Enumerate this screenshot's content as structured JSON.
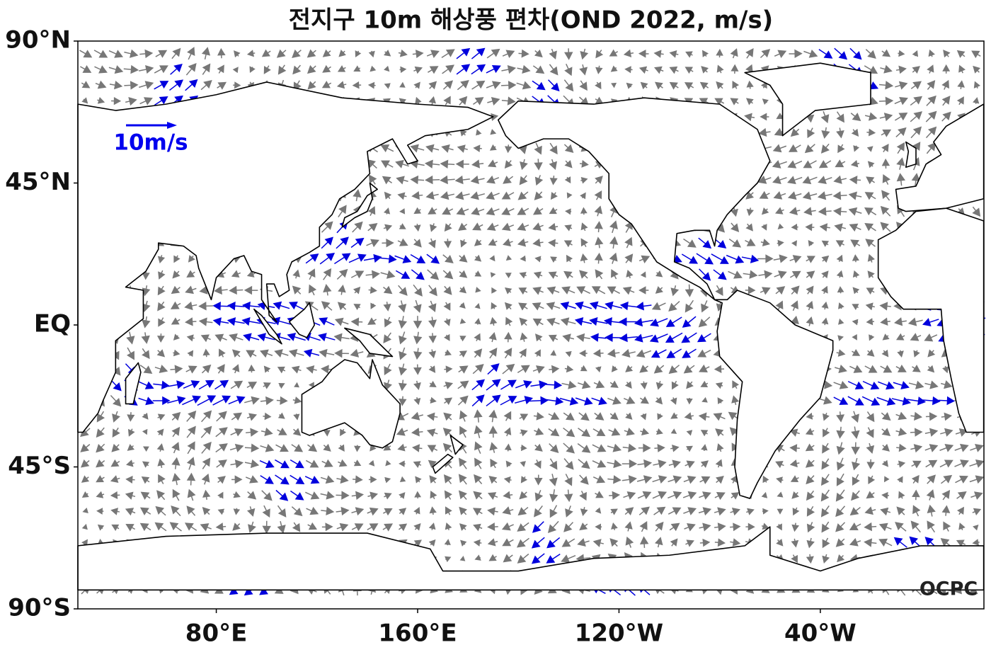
{
  "title": "전지구 10m 해상풍 편차(OND 2022, m/s)",
  "lat_ticks": [
    {
      "value": 90,
      "label": "90°N"
    },
    {
      "value": 45,
      "label": "45°N"
    },
    {
      "value": 0,
      "label": "EQ"
    },
    {
      "value": -45,
      "label": "45°S"
    },
    {
      "value": -90,
      "label": "90°S"
    }
  ],
  "lon_ticks": [
    {
      "value": 80,
      "label": "80°E"
    },
    {
      "value": 160,
      "label": "160°E"
    },
    {
      "value": -120,
      "label": "120°W"
    },
    {
      "value": -40,
      "label": "40°W"
    }
  ],
  "reference_vector": {
    "label": "10m/s"
  },
  "logo": "OCPC"
}
